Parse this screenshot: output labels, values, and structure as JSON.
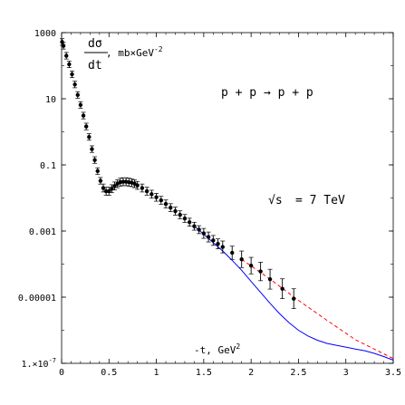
{
  "chart_data": {
    "type": "scatter",
    "title": "",
    "xlabel": "-t,  GeV",
    "xlabel_sup": "2",
    "ylabel_num": "dσ",
    "ylabel_den": "dt",
    "ylabel_unit": ",  mb×GeV",
    "ylabel_unit_sup": "-2",
    "process": "p + p → p + p",
    "energy_label": "= 7 TeV",
    "energy_sqrt": "√s",
    "x_scale": "linear",
    "y_scale": "log",
    "xlim": [
      0,
      3.5
    ],
    "ylim": [
      1e-07,
      1000
    ],
    "x_ticks": [
      {
        "value": 0,
        "label": "0"
      },
      {
        "value": 0.5,
        "label": "0.5"
      },
      {
        "value": 1,
        "label": "1"
      },
      {
        "value": 1.5,
        "label": "1.5"
      },
      {
        "value": 2,
        "label": "2"
      },
      {
        "value": 2.5,
        "label": "2.5"
      },
      {
        "value": 3,
        "label": "3"
      },
      {
        "value": 3.5,
        "label": "3.5"
      }
    ],
    "y_ticks": [
      {
        "value": 1000,
        "label": "1000"
      },
      {
        "value": 10,
        "label": "10"
      },
      {
        "value": 0.1,
        "label": "0.1"
      },
      {
        "value": 0.001,
        "label": "0.001"
      },
      {
        "value": 1e-05,
        "label": "0.00001"
      },
      {
        "value": 1e-07,
        "label": "1.×10",
        "sup": "-7"
      }
    ],
    "series": [
      {
        "style": "points",
        "color": "#000000",
        "points": [
          {
            "x": 0.005,
            "y": 520,
            "err": 0.1
          },
          {
            "x": 0.02,
            "y": 400,
            "err": 0.1
          },
          {
            "x": 0.05,
            "y": 200,
            "err": 0.1
          },
          {
            "x": 0.08,
            "y": 110,
            "err": 0.1
          },
          {
            "x": 0.11,
            "y": 55,
            "err": 0.1
          },
          {
            "x": 0.14,
            "y": 27,
            "err": 0.1
          },
          {
            "x": 0.17,
            "y": 13,
            "err": 0.1
          },
          {
            "x": 0.2,
            "y": 6.5,
            "err": 0.1
          },
          {
            "x": 0.23,
            "y": 3.1,
            "err": 0.1
          },
          {
            "x": 0.26,
            "y": 1.45,
            "err": 0.1
          },
          {
            "x": 0.29,
            "y": 0.7,
            "err": 0.1
          },
          {
            "x": 0.32,
            "y": 0.3,
            "err": 0.1
          },
          {
            "x": 0.35,
            "y": 0.14,
            "err": 0.1
          },
          {
            "x": 0.38,
            "y": 0.065,
            "err": 0.1
          },
          {
            "x": 0.41,
            "y": 0.033,
            "err": 0.1
          },
          {
            "x": 0.44,
            "y": 0.02,
            "err": 0.12
          },
          {
            "x": 0.47,
            "y": 0.016,
            "err": 0.12
          },
          {
            "x": 0.5,
            "y": 0.016,
            "err": 0.12
          },
          {
            "x": 0.53,
            "y": 0.019,
            "err": 0.12
          },
          {
            "x": 0.56,
            "y": 0.023,
            "err": 0.12
          },
          {
            "x": 0.59,
            "y": 0.027,
            "err": 0.12
          },
          {
            "x": 0.62,
            "y": 0.03,
            "err": 0.12
          },
          {
            "x": 0.65,
            "y": 0.031,
            "err": 0.12
          },
          {
            "x": 0.68,
            "y": 0.031,
            "err": 0.12
          },
          {
            "x": 0.71,
            "y": 0.03,
            "err": 0.12
          },
          {
            "x": 0.74,
            "y": 0.029,
            "err": 0.12
          },
          {
            "x": 0.77,
            "y": 0.027,
            "err": 0.12
          },
          {
            "x": 0.8,
            "y": 0.024,
            "err": 0.12
          },
          {
            "x": 0.85,
            "y": 0.02,
            "err": 0.12
          },
          {
            "x": 0.9,
            "y": 0.016,
            "err": 0.12
          },
          {
            "x": 0.95,
            "y": 0.013,
            "err": 0.12
          },
          {
            "x": 1.0,
            "y": 0.0105,
            "err": 0.12
          },
          {
            "x": 1.05,
            "y": 0.0085,
            "err": 0.12
          },
          {
            "x": 1.1,
            "y": 0.0066,
            "err": 0.12
          },
          {
            "x": 1.15,
            "y": 0.0051,
            "err": 0.12
          },
          {
            "x": 1.2,
            "y": 0.004,
            "err": 0.12
          },
          {
            "x": 1.25,
            "y": 0.0031,
            "err": 0.12
          },
          {
            "x": 1.3,
            "y": 0.0024,
            "err": 0.12
          },
          {
            "x": 1.35,
            "y": 0.00185,
            "err": 0.12
          },
          {
            "x": 1.4,
            "y": 0.0014,
            "err": 0.12
          },
          {
            "x": 1.45,
            "y": 0.0011,
            "err": 0.12
          },
          {
            "x": 1.5,
            "y": 0.00085,
            "err": 0.15
          },
          {
            "x": 1.55,
            "y": 0.00066,
            "err": 0.15
          },
          {
            "x": 1.6,
            "y": 0.00052,
            "err": 0.15
          },
          {
            "x": 1.65,
            "y": 0.00041,
            "err": 0.15
          },
          {
            "x": 1.7,
            "y": 0.00033,
            "err": 0.18
          },
          {
            "x": 1.8,
            "y": 0.00022,
            "err": 0.2
          },
          {
            "x": 1.9,
            "y": 0.00014,
            "err": 0.25
          },
          {
            "x": 2.0,
            "y": 9e-05,
            "err": 0.25
          },
          {
            "x": 2.1,
            "y": 6e-05,
            "err": 0.28
          },
          {
            "x": 2.2,
            "y": 3.5e-05,
            "err": 0.3
          },
          {
            "x": 2.33,
            "y": 1.8e-05,
            "err": 0.3
          },
          {
            "x": 2.45,
            "y": 9e-06,
            "err": 0.3
          }
        ]
      },
      {
        "style": "solid-line",
        "color": "#0000ff",
        "points": [
          {
            "x": 1.4,
            "y": 0.0014
          },
          {
            "x": 1.5,
            "y": 0.0008
          },
          {
            "x": 1.6,
            "y": 0.00045
          },
          {
            "x": 1.7,
            "y": 0.00025
          },
          {
            "x": 1.8,
            "y": 0.00013
          },
          {
            "x": 1.9,
            "y": 6.5e-05
          },
          {
            "x": 2.0,
            "y": 3e-05
          },
          {
            "x": 2.1,
            "y": 1.4e-05
          },
          {
            "x": 2.2,
            "y": 6.5e-06
          },
          {
            "x": 2.3,
            "y": 3.2e-06
          },
          {
            "x": 2.4,
            "y": 1.7e-06
          },
          {
            "x": 2.5,
            "y": 1e-06
          },
          {
            "x": 2.6,
            "y": 6.7e-07
          },
          {
            "x": 2.7,
            "y": 5e-07
          },
          {
            "x": 2.8,
            "y": 4e-07
          },
          {
            "x": 2.9,
            "y": 3.5e-07
          },
          {
            "x": 3.0,
            "y": 3.1e-07
          },
          {
            "x": 3.1,
            "y": 2.7e-07
          },
          {
            "x": 3.2,
            "y": 2.4e-07
          },
          {
            "x": 3.3,
            "y": 2e-07
          },
          {
            "x": 3.4,
            "y": 1.6e-07
          },
          {
            "x": 3.5,
            "y": 1.25e-07
          }
        ]
      },
      {
        "style": "dashed-line",
        "color": "#ff0000",
        "points": [
          {
            "x": 1.9,
            "y": 0.00014
          },
          {
            "x": 2.2,
            "y": 3.5e-05
          },
          {
            "x": 2.5,
            "y": 8e-06
          },
          {
            "x": 2.8,
            "y": 2e-06
          },
          {
            "x": 3.1,
            "y": 5.2e-07
          },
          {
            "x": 3.5,
            "y": 1.4e-07
          }
        ]
      }
    ]
  }
}
